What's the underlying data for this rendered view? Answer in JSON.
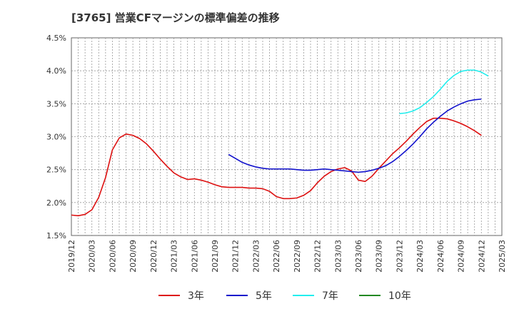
{
  "chart_data": {
    "type": "line",
    "title": "[3765]  営業CFマージンの標準偏差の推移",
    "xlabel": "",
    "ylabel": "",
    "ylim": [
      1.5,
      4.5
    ],
    "x_tick_labels": [
      "2019/12",
      "2020/03",
      "2020/06",
      "2020/09",
      "2020/12",
      "2021/03",
      "2021/06",
      "2021/09",
      "2021/12",
      "2022/03",
      "2022/06",
      "2022/09",
      "2022/12",
      "2023/03",
      "2023/06",
      "2023/09",
      "2023/12",
      "2024/03",
      "2024/06",
      "2024/09",
      "2024/12",
      "2025/03"
    ],
    "y_tick_labels": [
      "1.5%",
      "2.0%",
      "2.5%",
      "3.0%",
      "3.5%",
      "4.0%",
      "4.5%"
    ],
    "grid": true,
    "legend_position": "bottom",
    "x_months": [
      "2019/12",
      "2020/01",
      "2020/02",
      "2020/03",
      "2020/04",
      "2020/05",
      "2020/06",
      "2020/07",
      "2020/08",
      "2020/09",
      "2020/10",
      "2020/11",
      "2020/12",
      "2021/01",
      "2021/02",
      "2021/03",
      "2021/04",
      "2021/05",
      "2021/06",
      "2021/07",
      "2021/08",
      "2021/09",
      "2021/10",
      "2021/11",
      "2021/12",
      "2022/01",
      "2022/02",
      "2022/03",
      "2022/04",
      "2022/05",
      "2022/06",
      "2022/07",
      "2022/08",
      "2022/09",
      "2022/10",
      "2022/11",
      "2022/12",
      "2023/01",
      "2023/02",
      "2023/03",
      "2023/04",
      "2023/05",
      "2023/06",
      "2023/07",
      "2023/08",
      "2023/09",
      "2023/10",
      "2023/11",
      "2023/12",
      "2024/01",
      "2024/02",
      "2024/03",
      "2024/04",
      "2024/05",
      "2024/06",
      "2024/07",
      "2024/08",
      "2024/09",
      "2024/10",
      "2024/11",
      "2024/12",
      "2025/01",
      "2025/02",
      "2025/03"
    ],
    "series": [
      {
        "name": "3年",
        "color": "#dd1111",
        "values": [
          1.81,
          1.8,
          1.82,
          1.89,
          2.08,
          2.38,
          2.8,
          2.98,
          3.04,
          3.02,
          2.97,
          2.89,
          2.78,
          2.66,
          2.55,
          2.45,
          2.39,
          2.35,
          2.36,
          2.34,
          2.31,
          2.27,
          2.24,
          2.23,
          2.23,
          2.23,
          2.22,
          2.22,
          2.21,
          2.17,
          2.09,
          2.06,
          2.06,
          2.07,
          2.11,
          2.18,
          2.3,
          2.4,
          2.47,
          2.51,
          2.53,
          2.48,
          2.34,
          2.32,
          2.4,
          2.52,
          2.63,
          2.74,
          2.83,
          2.93,
          3.04,
          3.14,
          3.23,
          3.28,
          3.28,
          3.27,
          3.24,
          3.2,
          3.15,
          3.09,
          3.02,
          null,
          null,
          null
        ]
      },
      {
        "name": "5年",
        "color": "#1111cc",
        "values": [
          null,
          null,
          null,
          null,
          null,
          null,
          null,
          null,
          null,
          null,
          null,
          null,
          null,
          null,
          null,
          null,
          null,
          null,
          null,
          null,
          null,
          null,
          null,
          2.73,
          2.67,
          2.61,
          2.57,
          2.54,
          2.52,
          2.51,
          2.51,
          2.51,
          2.51,
          2.5,
          2.49,
          2.49,
          2.5,
          2.51,
          2.5,
          2.49,
          2.48,
          2.47,
          2.46,
          2.47,
          2.49,
          2.52,
          2.56,
          2.62,
          2.7,
          2.79,
          2.89,
          3.0,
          3.12,
          3.22,
          3.31,
          3.39,
          3.45,
          3.5,
          3.54,
          3.56,
          3.57,
          null,
          null,
          null
        ]
      },
      {
        "name": "7年",
        "color": "#22eeee",
        "values": [
          null,
          null,
          null,
          null,
          null,
          null,
          null,
          null,
          null,
          null,
          null,
          null,
          null,
          null,
          null,
          null,
          null,
          null,
          null,
          null,
          null,
          null,
          null,
          null,
          null,
          null,
          null,
          null,
          null,
          null,
          null,
          null,
          null,
          null,
          null,
          null,
          null,
          null,
          null,
          null,
          null,
          null,
          null,
          null,
          null,
          null,
          null,
          null,
          3.35,
          3.36,
          3.39,
          3.44,
          3.52,
          3.61,
          3.72,
          3.84,
          3.93,
          3.99,
          4.01,
          4.01,
          3.98,
          3.92,
          null,
          null
        ]
      },
      {
        "name": "10年",
        "color": "#228822",
        "values": []
      }
    ]
  }
}
